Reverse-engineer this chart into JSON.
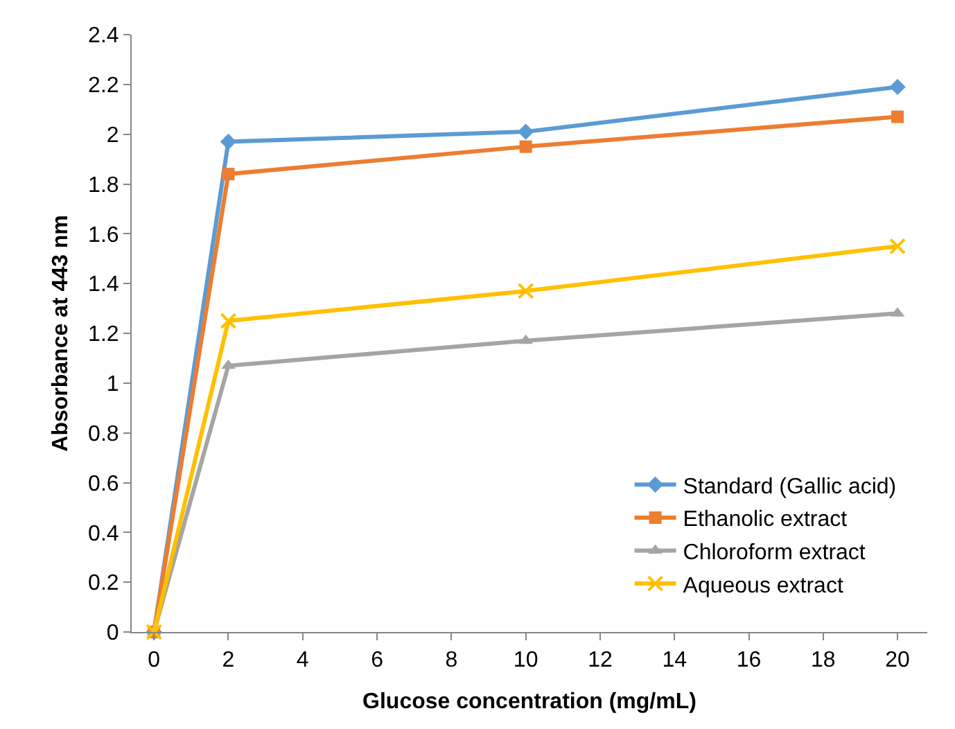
{
  "chart_data": {
    "type": "line",
    "xlabel": "Glucose concentration (mg/mL)",
    "ylabel": "Absorbance at 443 nm",
    "x": [
      0,
      2,
      10,
      20
    ],
    "series": [
      {
        "name": "Standard (Gallic acid)",
        "color": "#5b9bd5",
        "marker": "diamond",
        "values": [
          0,
          1.97,
          2.01,
          2.19
        ]
      },
      {
        "name": "Ethanolic extract",
        "color": "#ed7d31",
        "marker": "square",
        "values": [
          0,
          1.84,
          1.95,
          2.07
        ]
      },
      {
        "name": "Chloroform extract",
        "color": "#a5a5a5",
        "marker": "triangle",
        "values": [
          0,
          1.07,
          1.17,
          1.28
        ]
      },
      {
        "name": "Aqueous extract",
        "color": "#ffc000",
        "marker": "cross",
        "values": [
          0,
          1.25,
          1.37,
          1.55
        ]
      }
    ],
    "xlim": [
      -0.6,
      20.8
    ],
    "xticks": [
      0,
      2,
      4,
      6,
      8,
      10,
      12,
      14,
      16,
      18,
      20
    ],
    "ylim": [
      0,
      2.4
    ],
    "yticks": [
      0,
      0.2,
      0.4,
      0.6,
      0.8,
      1,
      1.2,
      1.4,
      1.6,
      1.8,
      2,
      2.2,
      2.4
    ],
    "grid": false,
    "legend": "bottom right",
    "line_style": "solid"
  }
}
